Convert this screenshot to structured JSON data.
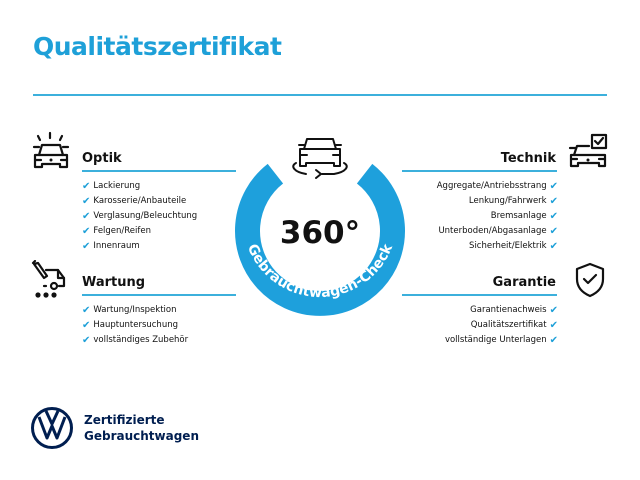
{
  "title": "Qualitätszertifikat",
  "accent_color": "#1ea0d8",
  "brand_color": "#001e50",
  "center": {
    "degrees": "360°",
    "ring_label": "Gebrauchtwagen-Check",
    "icon": "car-rotate-icon"
  },
  "sections": {
    "optik": {
      "heading": "Optik",
      "icon": "car-lights-icon",
      "items": [
        "Lackierung",
        "Karosserie/Anbauteile",
        "Verglasung/Beleuchtung",
        "Felgen/Reifen",
        "Innenraum"
      ]
    },
    "wartung": {
      "heading": "Wartung",
      "icon": "service-truck-icon",
      "items": [
        "Wartung/Inspektion",
        "Hauptuntersuchung",
        "vollständiges Zubehör"
      ]
    },
    "technik": {
      "heading": "Technik",
      "icon": "car-checkbox-icon",
      "items": [
        "Aggregate/Antriebsstrang",
        "Lenkung/Fahrwerk",
        "Bremsanlage",
        "Unterboden/Abgasanlage",
        "Sicherheit/Elektrik"
      ]
    },
    "garantie": {
      "heading": "Garantie",
      "icon": "shield-check-icon",
      "items": [
        "Garantienachweis",
        "Qualitätszertifikat",
        "vollständige Unterlagen"
      ]
    }
  },
  "check_glyph": "✔",
  "footer": {
    "line1": "Zertifizierte",
    "line2": "Gebrauchtwagen"
  }
}
